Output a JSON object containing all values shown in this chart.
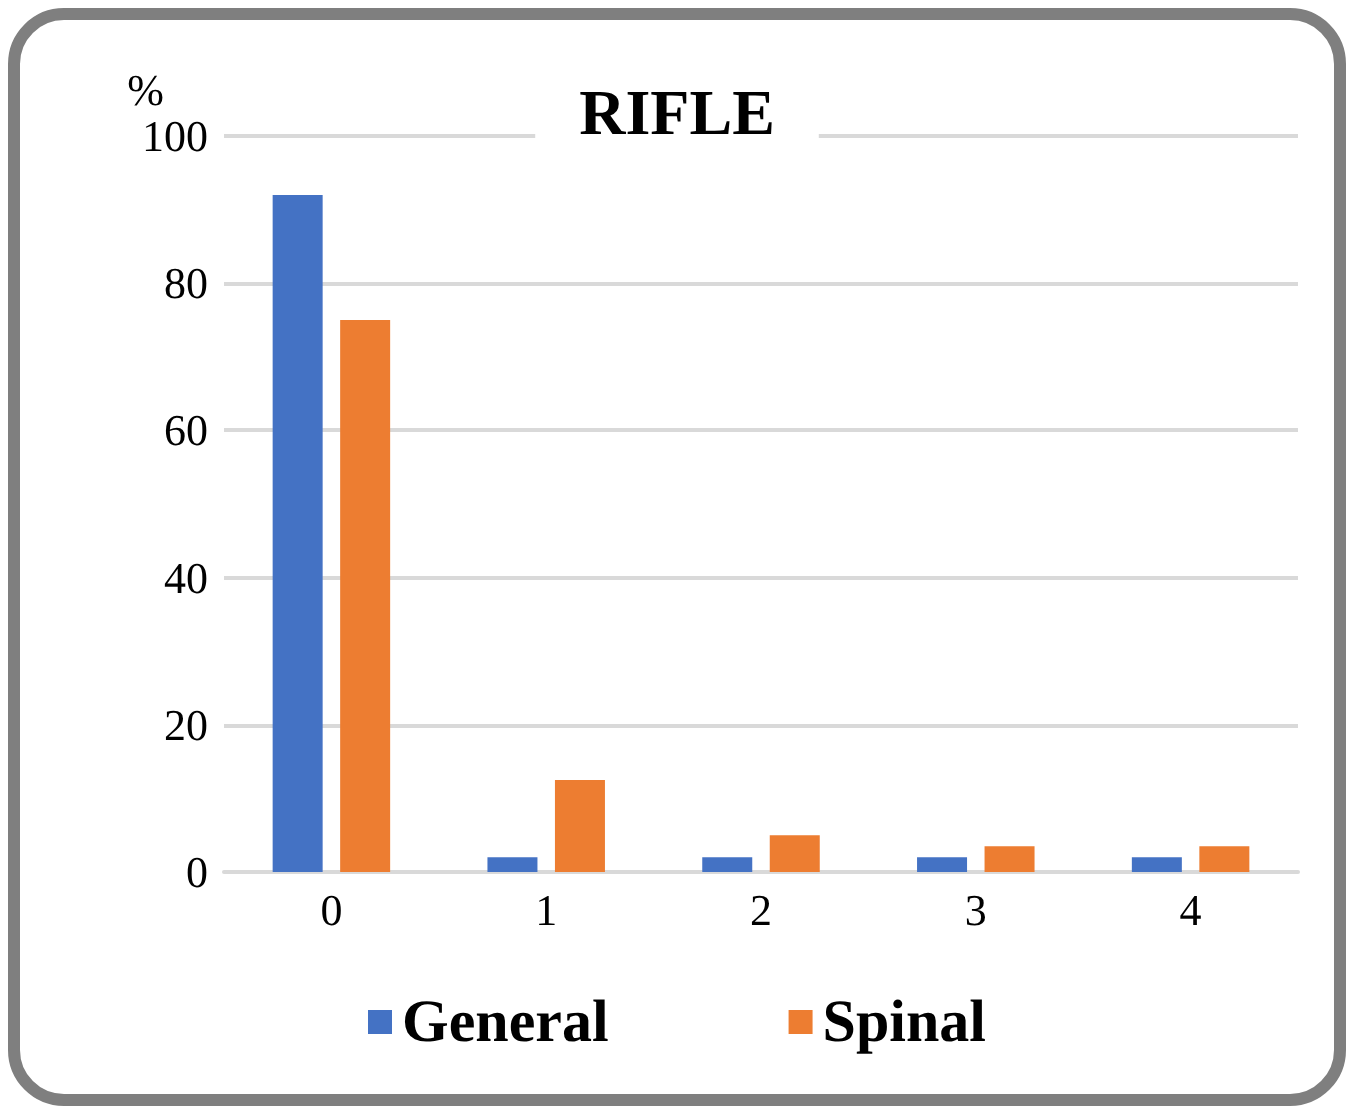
{
  "chart_data": {
    "type": "bar",
    "title": "RIFLE",
    "ylabel": "%",
    "categories": [
      "0",
      "1",
      "2",
      "3",
      "4"
    ],
    "series": [
      {
        "name": "General",
        "color": "#4472c4",
        "values": [
          92,
          2,
          2,
          2,
          2
        ]
      },
      {
        "name": "Spinal",
        "color": "#ed7d31",
        "values": [
          75,
          12.5,
          5,
          3.5,
          3.5
        ]
      }
    ],
    "ylim": [
      0,
      100
    ],
    "yticks": [
      0,
      20,
      40,
      60,
      80,
      100
    ],
    "grid": "y",
    "legend": "bottom"
  }
}
